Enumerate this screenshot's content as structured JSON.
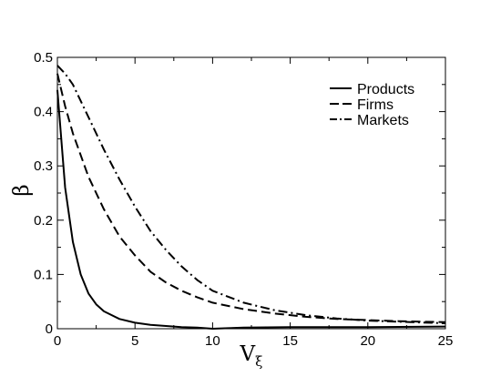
{
  "chart_data": {
    "type": "line",
    "xlabel": "V",
    "xlabel_sub": "ξ",
    "ylabel": "β",
    "xlim": [
      0,
      25
    ],
    "ylim": [
      0,
      0.5
    ],
    "x_ticks": [
      0,
      5,
      10,
      15,
      20,
      25
    ],
    "x_tick_labels": [
      "0",
      "5",
      "10",
      "15",
      "20",
      "25"
    ],
    "y_ticks": [
      0,
      0.1,
      0.2,
      0.3,
      0.4,
      0.5
    ],
    "y_tick_labels": [
      "0",
      "0.1",
      "0.2",
      "0.3",
      "0.4",
      "0.5"
    ],
    "grid": false,
    "legend_position": "top-right",
    "series": [
      {
        "name": "Products",
        "style": "solid",
        "x": [
          0,
          0.5,
          1,
          1.5,
          2,
          2.5,
          3,
          4,
          5,
          6,
          7,
          8,
          9,
          10,
          11,
          12,
          15,
          20,
          25
        ],
        "y": [
          0.44,
          0.26,
          0.16,
          0.1,
          0.065,
          0.045,
          0.032,
          0.018,
          0.011,
          0.007,
          0.005,
          0.003,
          0.002,
          0.0,
          0.001,
          0.002,
          0.003,
          0.003,
          0.004
        ]
      },
      {
        "name": "Firms",
        "style": "dashed",
        "x": [
          0,
          0.5,
          1,
          2,
          3,
          4,
          5,
          6,
          7,
          8,
          9,
          10,
          12,
          14,
          16,
          18,
          20,
          22,
          25
        ],
        "y": [
          0.47,
          0.41,
          0.36,
          0.28,
          0.22,
          0.17,
          0.135,
          0.105,
          0.085,
          0.07,
          0.058,
          0.048,
          0.036,
          0.028,
          0.022,
          0.018,
          0.016,
          0.014,
          0.012
        ]
      },
      {
        "name": "Markets",
        "style": "dashdot",
        "x": [
          0,
          0.5,
          1,
          2,
          3,
          4,
          5,
          6,
          7,
          8,
          9,
          10,
          12,
          14,
          16,
          18,
          20,
          22,
          25
        ],
        "y": [
          0.485,
          0.47,
          0.45,
          0.39,
          0.33,
          0.275,
          0.225,
          0.18,
          0.145,
          0.115,
          0.09,
          0.07,
          0.048,
          0.034,
          0.025,
          0.019,
          0.015,
          0.013,
          0.01
        ]
      }
    ]
  }
}
